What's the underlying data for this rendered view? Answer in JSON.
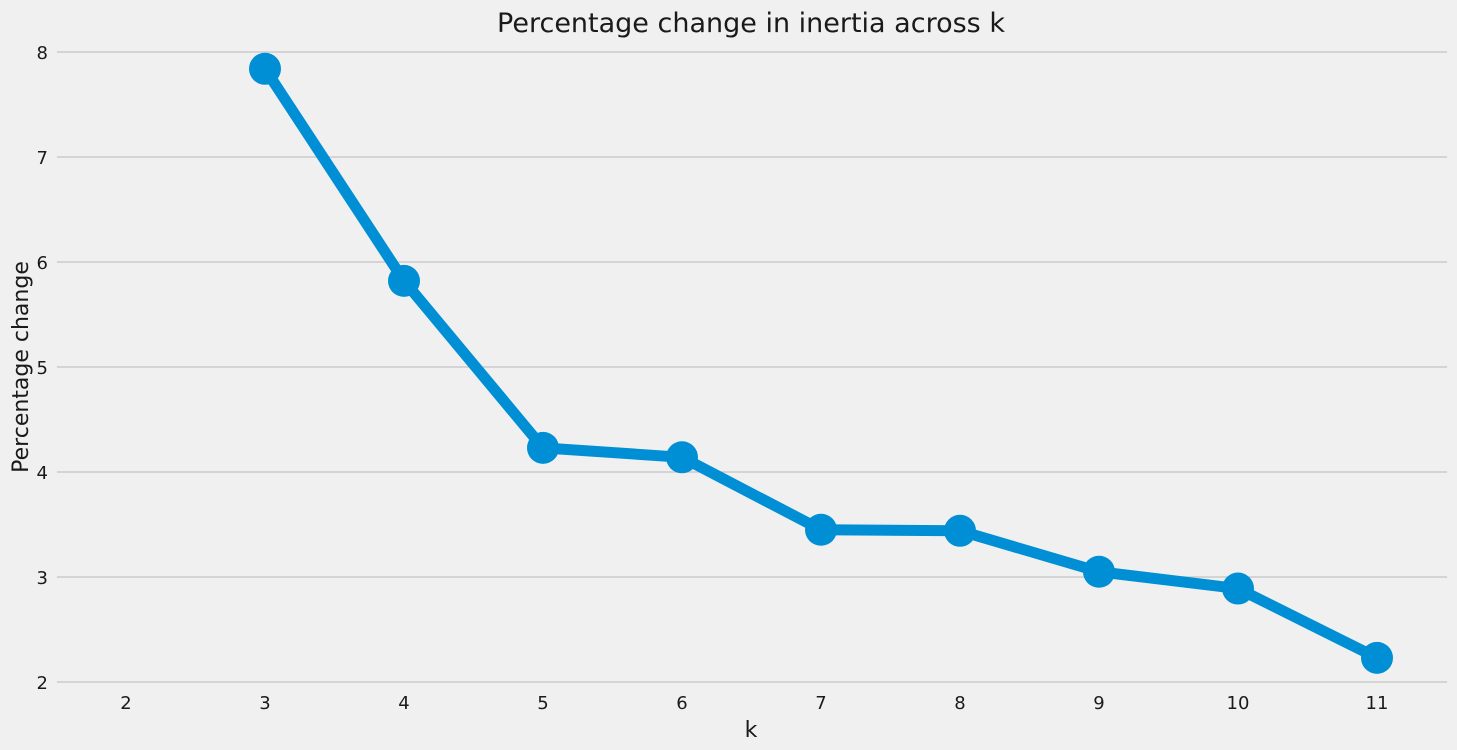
{
  "chart_data": {
    "type": "line",
    "title": "Percentage change in inertia across k",
    "xlabel": "k",
    "ylabel": "Percentage change",
    "categories": [
      "2",
      "3",
      "4",
      "5",
      "6",
      "7",
      "8",
      "9",
      "10",
      "11"
    ],
    "y_ticks": [
      "2",
      "3",
      "4",
      "5",
      "6",
      "7",
      "8"
    ],
    "ylim": [
      2,
      8
    ],
    "grid": "horizontal",
    "series": [
      {
        "values": [
          null,
          7.84,
          5.82,
          4.23,
          4.14,
          3.45,
          3.44,
          3.05,
          2.89,
          2.23
        ],
        "color": "#008fd5"
      }
    ]
  }
}
